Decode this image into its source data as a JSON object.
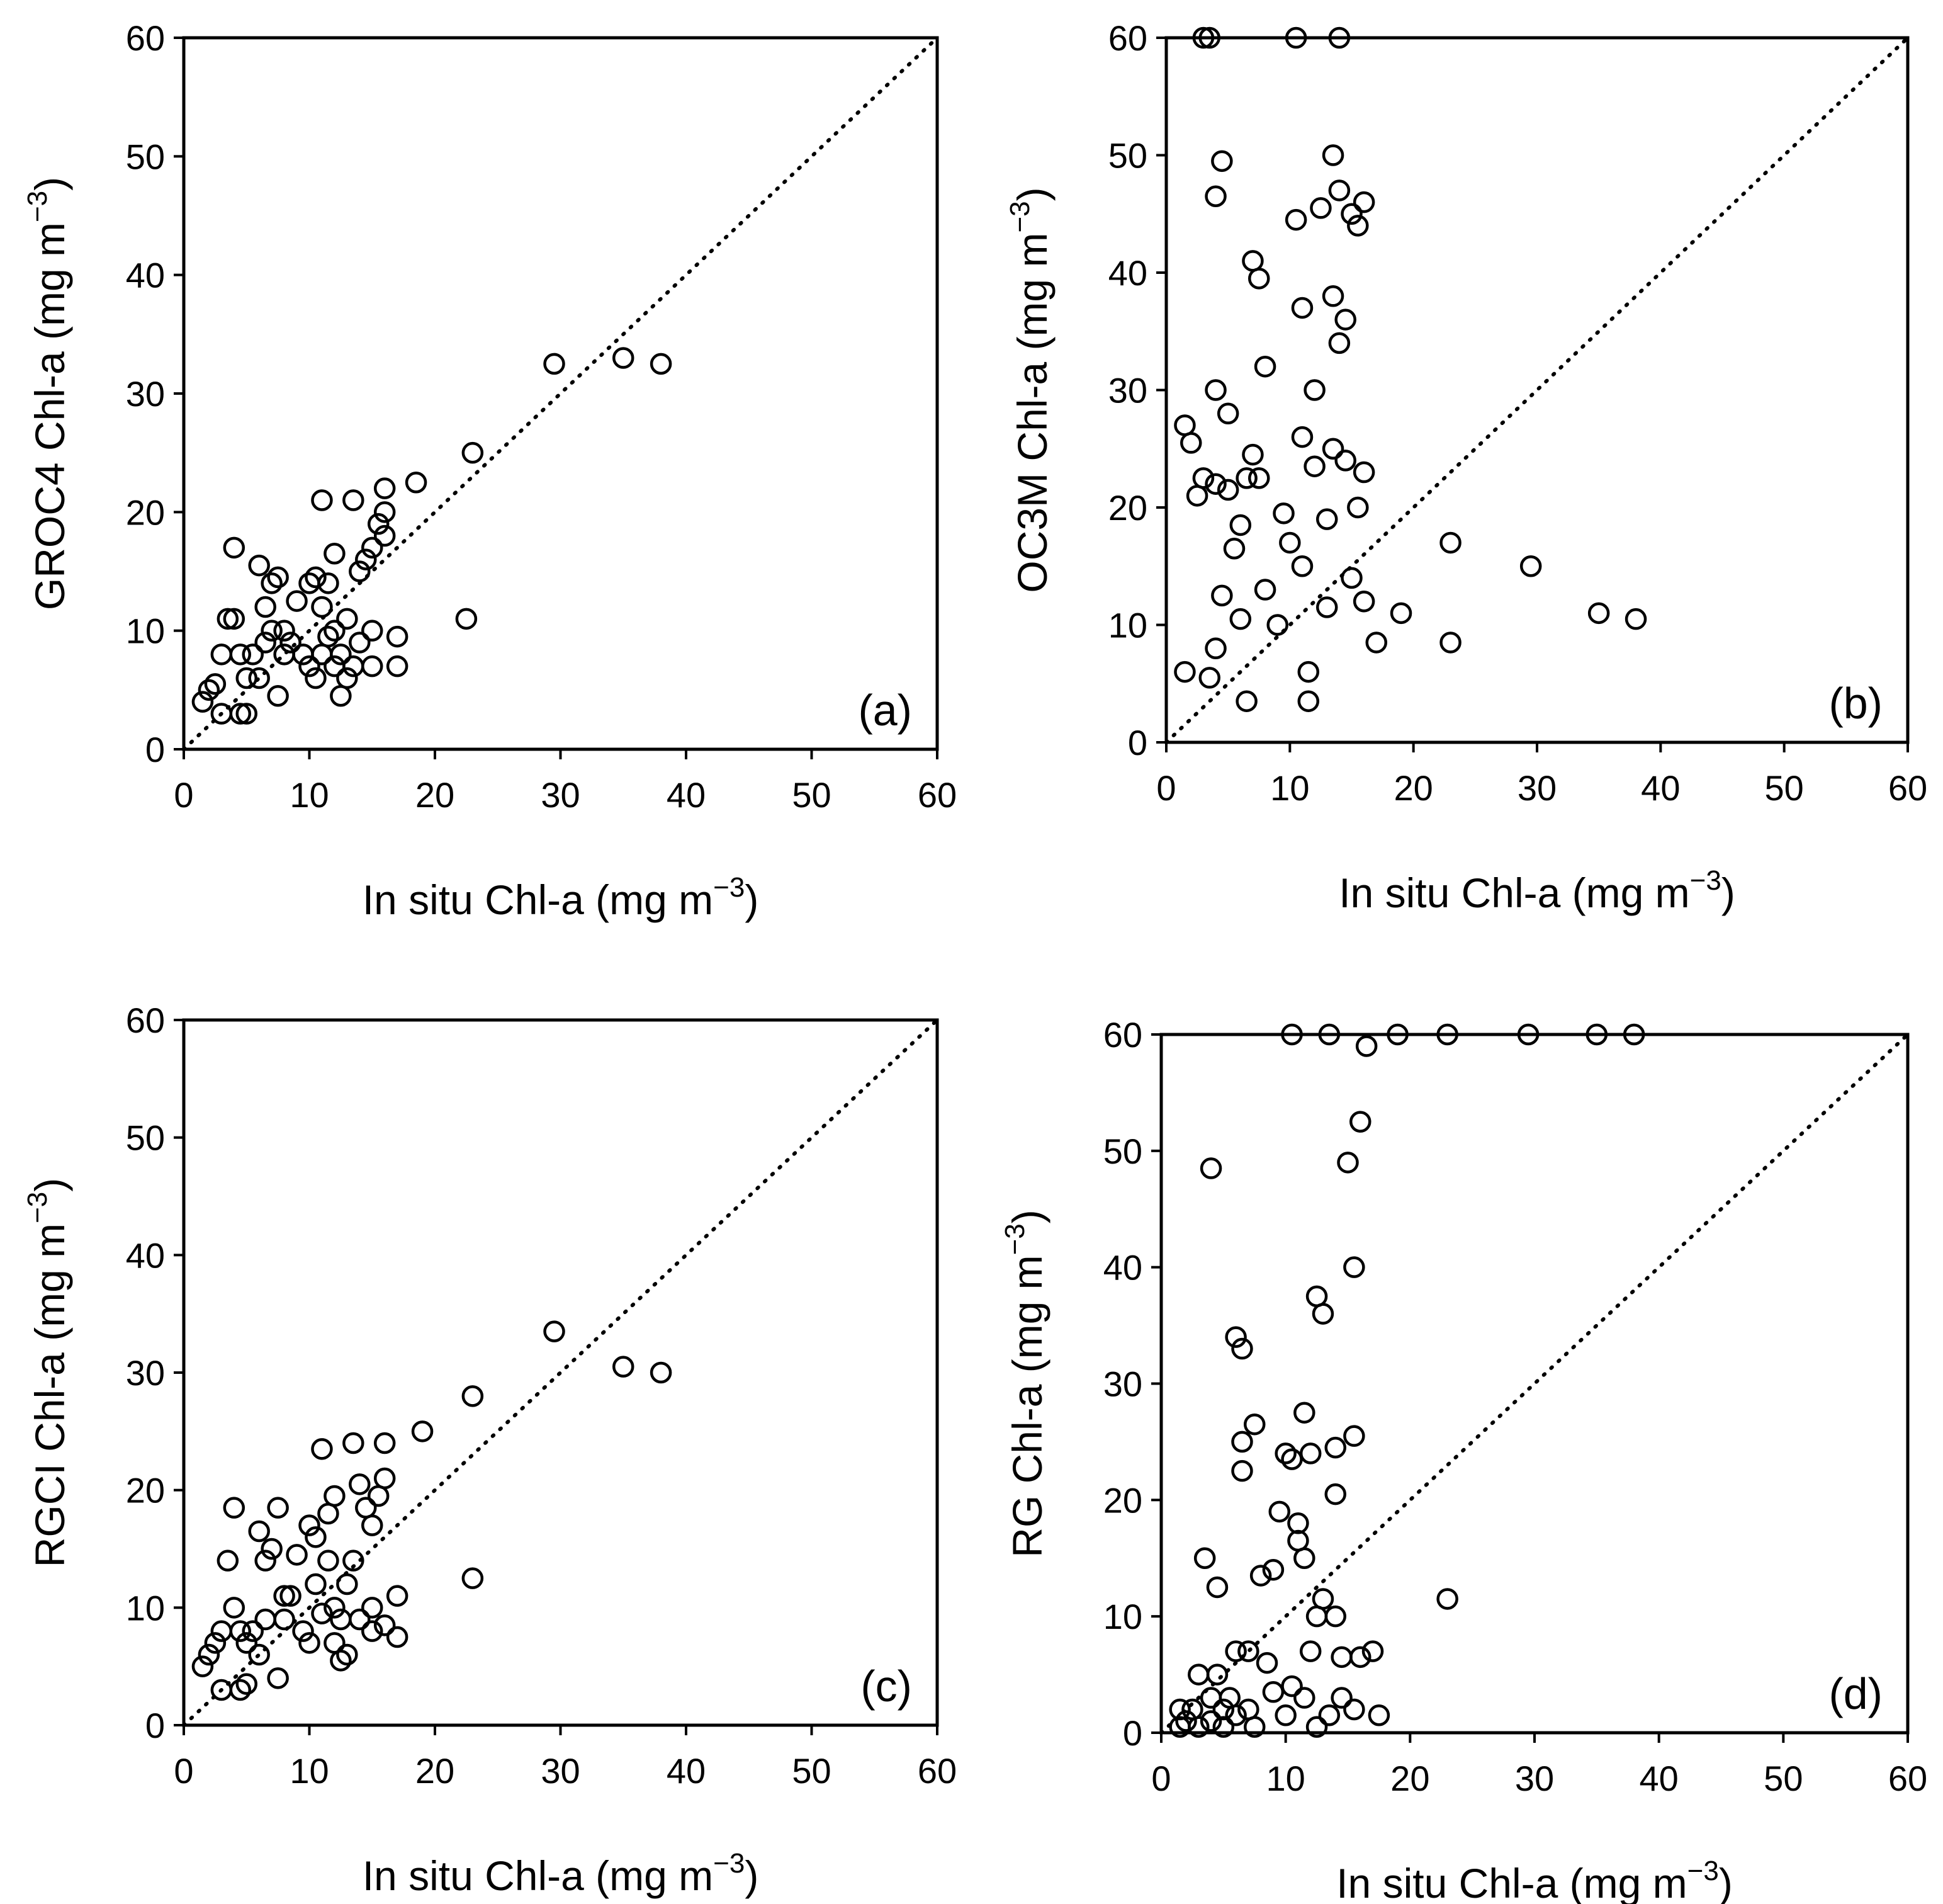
{
  "chart_data": [
    {
      "type": "scatter",
      "panel_label": "(a)",
      "xlabel": "In situ Chl-a (mg m",
      "ylabel": "GROC4 Chl-a (mg m",
      "unit_exponent": "−3",
      "unit_close": ")",
      "xlim": [
        0,
        60
      ],
      "ylim": [
        0,
        60
      ],
      "xticks": [
        "0",
        "10",
        "20",
        "30",
        "40",
        "50",
        "60"
      ],
      "yticks": [
        "0",
        "10",
        "20",
        "30",
        "40",
        "50",
        "60"
      ],
      "frame": "full",
      "identity_line": true,
      "points": [
        [
          1.5,
          4
        ],
        [
          2,
          5
        ],
        [
          2.5,
          5.5
        ],
        [
          3,
          3
        ],
        [
          3,
          8
        ],
        [
          3.5,
          11
        ],
        [
          4,
          17
        ],
        [
          4,
          11
        ],
        [
          4.5,
          8
        ],
        [
          4.5,
          3
        ],
        [
          5,
          6
        ],
        [
          5,
          3
        ],
        [
          5.5,
          8
        ],
        [
          6,
          15.5
        ],
        [
          6,
          6
        ],
        [
          6.5,
          12
        ],
        [
          6.5,
          9
        ],
        [
          7,
          14
        ],
        [
          7,
          10
        ],
        [
          7.5,
          4.5
        ],
        [
          7.5,
          14.5
        ],
        [
          8,
          8
        ],
        [
          8,
          10
        ],
        [
          8.5,
          9
        ],
        [
          9,
          12.5
        ],
        [
          9.5,
          8
        ],
        [
          10,
          7
        ],
        [
          10,
          14
        ],
        [
          10.5,
          14.5
        ],
        [
          10.5,
          6
        ],
        [
          11,
          21
        ],
        [
          11,
          12
        ],
        [
          11,
          8
        ],
        [
          11.5,
          9.5
        ],
        [
          11.5,
          14
        ],
        [
          12,
          16.5
        ],
        [
          12,
          7
        ],
        [
          12,
          10
        ],
        [
          12.5,
          8
        ],
        [
          12.5,
          4.5
        ],
        [
          13,
          11
        ],
        [
          13,
          6
        ],
        [
          13.5,
          21
        ],
        [
          13.5,
          7
        ],
        [
          14,
          15
        ],
        [
          14,
          9
        ],
        [
          14.5,
          16
        ],
        [
          15,
          17
        ],
        [
          15,
          10
        ],
        [
          15,
          7
        ],
        [
          15.5,
          19
        ],
        [
          16,
          22
        ],
        [
          16,
          18
        ],
        [
          16,
          20
        ],
        [
          17,
          9.5
        ],
        [
          17,
          7
        ],
        [
          18.5,
          22.5
        ],
        [
          22.5,
          11
        ],
        [
          23,
          25
        ],
        [
          29.5,
          32.5
        ],
        [
          35,
          33
        ],
        [
          38,
          32.5
        ]
      ]
    },
    {
      "type": "scatter",
      "panel_label": "(b)",
      "xlabel": "In situ Chl-a (mg m",
      "ylabel": "OC3M Chl-a (mg m",
      "unit_exponent": "−3",
      "unit_close": ")",
      "xlim": [
        0,
        60
      ],
      "ylim": [
        0,
        60
      ],
      "xticks": [
        "0",
        "10",
        "20",
        "30",
        "40",
        "50",
        "60"
      ],
      "yticks": [
        "0",
        "10",
        "20",
        "30",
        "40",
        "50",
        "60"
      ],
      "frame": "box",
      "identity_line": true,
      "points": [
        [
          1.5,
          6
        ],
        [
          1.5,
          27
        ],
        [
          2,
          25.5
        ],
        [
          2.5,
          21
        ],
        [
          3,
          22.5
        ],
        [
          3,
          60
        ],
        [
          3.5,
          60
        ],
        [
          3.5,
          5.5
        ],
        [
          4,
          46.5
        ],
        [
          4,
          30
        ],
        [
          4,
          22
        ],
        [
          4,
          8
        ],
        [
          4.5,
          49.5
        ],
        [
          4.5,
          12.5
        ],
        [
          5,
          28
        ],
        [
          5,
          21.5
        ],
        [
          5.5,
          16.5
        ],
        [
          6,
          18.5
        ],
        [
          6,
          10.5
        ],
        [
          6.5,
          3.5
        ],
        [
          6.5,
          22.5
        ],
        [
          7,
          24.5
        ],
        [
          7,
          41
        ],
        [
          7.5,
          39.5
        ],
        [
          7.5,
          22.5
        ],
        [
          8,
          32
        ],
        [
          8,
          13
        ],
        [
          9,
          10
        ],
        [
          9.5,
          19.5
        ],
        [
          10,
          17
        ],
        [
          10.5,
          60
        ],
        [
          10.5,
          44.5
        ],
        [
          11,
          37
        ],
        [
          11,
          26
        ],
        [
          11,
          15
        ],
        [
          11.5,
          6
        ],
        [
          11.5,
          3.5
        ],
        [
          12,
          30
        ],
        [
          12,
          23.5
        ],
        [
          12.5,
          45.5
        ],
        [
          13,
          19
        ],
        [
          13,
          11.5
        ],
        [
          13.5,
          50
        ],
        [
          13.5,
          38
        ],
        [
          13.5,
          25
        ],
        [
          14,
          47
        ],
        [
          14,
          34
        ],
        [
          14,
          60
        ],
        [
          14.5,
          36
        ],
        [
          14.5,
          24
        ],
        [
          15,
          45
        ],
        [
          15,
          14
        ],
        [
          15.5,
          44
        ],
        [
          15.5,
          20
        ],
        [
          16,
          46
        ],
        [
          16,
          23
        ],
        [
          16,
          12
        ],
        [
          17,
          8.5
        ],
        [
          19,
          11
        ],
        [
          23,
          17
        ],
        [
          23,
          8.5
        ],
        [
          29.5,
          15
        ],
        [
          35,
          11
        ],
        [
          38,
          10.5
        ]
      ]
    },
    {
      "type": "scatter",
      "panel_label": "(c)",
      "xlabel": "In situ Chl-a (mg m",
      "ylabel": "RGCI Chl-a (mg m",
      "unit_exponent": "−3",
      "unit_close": ")",
      "xlim": [
        0,
        60
      ],
      "ylim": [
        0,
        60
      ],
      "xticks": [
        "0",
        "10",
        "20",
        "30",
        "40",
        "50",
        "60"
      ],
      "yticks": [
        "0",
        "10",
        "20",
        "30",
        "40",
        "50",
        "60"
      ],
      "frame": "full",
      "identity_line": true,
      "points": [
        [
          1.5,
          5
        ],
        [
          2,
          6
        ],
        [
          2.5,
          7
        ],
        [
          3,
          3
        ],
        [
          3,
          8
        ],
        [
          3.5,
          14
        ],
        [
          4,
          18.5
        ],
        [
          4,
          10
        ],
        [
          4.5,
          8
        ],
        [
          4.5,
          3
        ],
        [
          5,
          7
        ],
        [
          5,
          3.5
        ],
        [
          5.5,
          8
        ],
        [
          6,
          16.5
        ],
        [
          6,
          6
        ],
        [
          6.5,
          14
        ],
        [
          6.5,
          9
        ],
        [
          7,
          15
        ],
        [
          7.5,
          4
        ],
        [
          7.5,
          18.5
        ],
        [
          8,
          11
        ],
        [
          8,
          9
        ],
        [
          8.5,
          11
        ],
        [
          9,
          14.5
        ],
        [
          9.5,
          8
        ],
        [
          10,
          7
        ],
        [
          10,
          17
        ],
        [
          10.5,
          12
        ],
        [
          10.5,
          16
        ],
        [
          11,
          23.5
        ],
        [
          11,
          9.5
        ],
        [
          11.5,
          18
        ],
        [
          11.5,
          14
        ],
        [
          12,
          19.5
        ],
        [
          12,
          7
        ],
        [
          12,
          10
        ],
        [
          12.5,
          9
        ],
        [
          12.5,
          5.5
        ],
        [
          13,
          12
        ],
        [
          13,
          6
        ],
        [
          13.5,
          24
        ],
        [
          13.5,
          14
        ],
        [
          14,
          20.5
        ],
        [
          14,
          9
        ],
        [
          14.5,
          18.5
        ],
        [
          15,
          17
        ],
        [
          15,
          10
        ],
        [
          15,
          8
        ],
        [
          15.5,
          19.5
        ],
        [
          16,
          24
        ],
        [
          16,
          21
        ],
        [
          16,
          8.5
        ],
        [
          17,
          11
        ],
        [
          17,
          7.5
        ],
        [
          19,
          25
        ],
        [
          23,
          28
        ],
        [
          23,
          12.5
        ],
        [
          29.5,
          33.5
        ],
        [
          35,
          30.5
        ],
        [
          38,
          30
        ]
      ]
    },
    {
      "type": "scatter",
      "panel_label": "(d)",
      "xlabel": "In situ Chl-a (mg m",
      "ylabel": "RG Chl-a (mg m",
      "unit_exponent": "−3",
      "unit_close": ")",
      "xlim": [
        0,
        60
      ],
      "ylim": [
        0,
        60
      ],
      "xticks": [
        "0",
        "10",
        "20",
        "30",
        "40",
        "50",
        "60"
      ],
      "yticks": [
        "0",
        "10",
        "20",
        "30",
        "40",
        "50",
        "60"
      ],
      "frame": "box",
      "identity_line": true,
      "points": [
        [
          1.5,
          0.5
        ],
        [
          1.5,
          2
        ],
        [
          2,
          1
        ],
        [
          2.5,
          2
        ],
        [
          3,
          0.5
        ],
        [
          3,
          5
        ],
        [
          3.5,
          15
        ],
        [
          4,
          48.5
        ],
        [
          4,
          3
        ],
        [
          4,
          1
        ],
        [
          4.5,
          12.5
        ],
        [
          4.5,
          5
        ],
        [
          5,
          2
        ],
        [
          5,
          0.5
        ],
        [
          5.5,
          3
        ],
        [
          6,
          7
        ],
        [
          6,
          34
        ],
        [
          6,
          1.5
        ],
        [
          6.5,
          33
        ],
        [
          6.5,
          25
        ],
        [
          6.5,
          22.5
        ],
        [
          7,
          7
        ],
        [
          7,
          2
        ],
        [
          7.5,
          26.5
        ],
        [
          7.5,
          0.5
        ],
        [
          8,
          13.5
        ],
        [
          8.5,
          6
        ],
        [
          9,
          14
        ],
        [
          9,
          3.5
        ],
        [
          9.5,
          19
        ],
        [
          10,
          24
        ],
        [
          10,
          1.5
        ],
        [
          10.5,
          23.5
        ],
        [
          10.5,
          4
        ],
        [
          11,
          18
        ],
        [
          11,
          16.5
        ],
        [
          11.5,
          27.5
        ],
        [
          11.5,
          15
        ],
        [
          11.5,
          3
        ],
        [
          12,
          24
        ],
        [
          12,
          7
        ],
        [
          12.5,
          37.5
        ],
        [
          12.5,
          10
        ],
        [
          12.5,
          0.5
        ],
        [
          13,
          36
        ],
        [
          13,
          11.5
        ],
        [
          13.5,
          1.5
        ],
        [
          14,
          24.5
        ],
        [
          14,
          20.5
        ],
        [
          14,
          10
        ],
        [
          14.5,
          6.5
        ],
        [
          14.5,
          3
        ],
        [
          15,
          49
        ],
        [
          15.5,
          40
        ],
        [
          15.5,
          25.5
        ],
        [
          15.5,
          2
        ],
        [
          16,
          52.5
        ],
        [
          16,
          6.5
        ],
        [
          16.5,
          59
        ],
        [
          17,
          7
        ],
        [
          17.5,
          1.5
        ],
        [
          23,
          11.5
        ],
        [
          10.5,
          60
        ],
        [
          13.5,
          60
        ],
        [
          19,
          60
        ],
        [
          23,
          60
        ],
        [
          29.5,
          60
        ],
        [
          35,
          60
        ],
        [
          38,
          60
        ]
      ]
    }
  ]
}
